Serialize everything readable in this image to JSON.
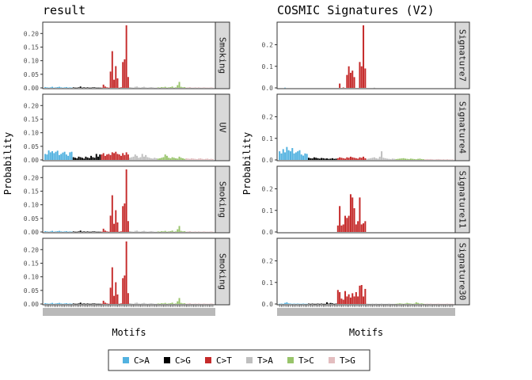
{
  "colors": {
    "C>A": "#52B2E0",
    "C>G": "#000000",
    "C>T": "#C52A2A",
    "T>A": "#BFBFBF",
    "T>C": "#98C46A",
    "T>G": "#E3BDBF"
  },
  "legend": [
    "C>A",
    "C>G",
    "C>T",
    "T>A",
    "T>C",
    "T>G"
  ],
  "chart_data": [
    {
      "type": "bar",
      "title": "result",
      "xlabel": "Motifs",
      "ylabel": "Probability",
      "ylim": [
        0,
        0.23
      ],
      "yticks": [
        0.0,
        0.05,
        0.1,
        0.15,
        0.2
      ],
      "ytick_labels": [
        "0.00",
        "0.05",
        "0.10",
        "0.15",
        "0.20"
      ],
      "panels": [
        {
          "strip": "Smoking",
          "values": [
            0.003,
            0.002,
            0.001,
            0.002,
            0.004,
            0.001,
            0.002,
            0.003,
            0.004,
            0.002,
            0.001,
            0.002,
            0.003,
            0.001,
            0.002,
            0.001,
            0.002,
            0.001,
            0.001,
            0.002,
            0.005,
            0.001,
            0.002,
            0.001,
            0.002,
            0.001,
            0.001,
            0.002,
            0.002,
            0.001,
            0.001,
            0.001,
            0.001,
            0.012,
            0.005,
            0.002,
            0.001,
            0.06,
            0.135,
            0.03,
            0.08,
            0.035,
            0.001,
            0.002,
            0.095,
            0.105,
            0.23,
            0.04,
            0.003,
            0.002,
            0.001,
            0.004,
            0.005,
            0.002,
            0.001,
            0.003,
            0.004,
            0.002,
            0.001,
            0.002,
            0.003,
            0.002,
            0.001,
            0.001,
            0.002,
            0.001,
            0.003,
            0.002,
            0.004,
            0.001,
            0.002,
            0.003,
            0.005,
            0.001,
            0.002,
            0.01,
            0.022,
            0.004,
            0.002,
            0.003,
            0.001,
            0.002,
            0.003,
            0.001,
            0.001,
            0.002,
            0.001,
            0.002,
            0.001,
            0.001,
            0.002,
            0.001,
            0.001,
            0.001,
            0.002,
            0.001
          ]
        },
        {
          "strip": "UV",
          "values": [
            0.022,
            0.02,
            0.035,
            0.028,
            0.032,
            0.025,
            0.03,
            0.034,
            0.018,
            0.022,
            0.027,
            0.03,
            0.02,
            0.015,
            0.028,
            0.03,
            0.01,
            0.008,
            0.006,
            0.012,
            0.01,
            0.008,
            0.005,
            0.012,
            0.009,
            0.007,
            0.015,
            0.01,
            0.008,
            0.022,
            0.012,
            0.02,
            0.02,
            0.025,
            0.015,
            0.02,
            0.022,
            0.018,
            0.028,
            0.025,
            0.03,
            0.022,
            0.02,
            0.015,
            0.025,
            0.018,
            0.028,
            0.02,
            0.008,
            0.01,
            0.012,
            0.02,
            0.015,
            0.008,
            0.01,
            0.022,
            0.012,
            0.018,
            0.01,
            0.008,
            0.006,
            0.005,
            0.008,
            0.006,
            0.005,
            0.006,
            0.008,
            0.01,
            0.02,
            0.015,
            0.008,
            0.006,
            0.01,
            0.008,
            0.006,
            0.005,
            0.012,
            0.008,
            0.006,
            0.004,
            0.006,
            0.005,
            0.004,
            0.006,
            0.005,
            0.004,
            0.003,
            0.005,
            0.006,
            0.004,
            0.003,
            0.004,
            0.005,
            0.003,
            0.004,
            0.003
          ]
        },
        {
          "strip": "Smoking",
          "values": [
            0.003,
            0.002,
            0.001,
            0.002,
            0.004,
            0.001,
            0.002,
            0.003,
            0.004,
            0.002,
            0.001,
            0.002,
            0.003,
            0.001,
            0.002,
            0.001,
            0.002,
            0.001,
            0.001,
            0.002,
            0.005,
            0.001,
            0.002,
            0.001,
            0.002,
            0.001,
            0.001,
            0.002,
            0.002,
            0.001,
            0.001,
            0.001,
            0.001,
            0.012,
            0.005,
            0.002,
            0.001,
            0.06,
            0.135,
            0.03,
            0.08,
            0.035,
            0.001,
            0.002,
            0.095,
            0.105,
            0.23,
            0.04,
            0.003,
            0.002,
            0.001,
            0.004,
            0.005,
            0.002,
            0.001,
            0.003,
            0.004,
            0.002,
            0.001,
            0.002,
            0.003,
            0.002,
            0.001,
            0.001,
            0.002,
            0.001,
            0.003,
            0.002,
            0.004,
            0.001,
            0.002,
            0.003,
            0.005,
            0.001,
            0.002,
            0.01,
            0.022,
            0.004,
            0.002,
            0.003,
            0.001,
            0.002,
            0.003,
            0.001,
            0.001,
            0.002,
            0.001,
            0.002,
            0.001,
            0.001,
            0.002,
            0.001,
            0.001,
            0.001,
            0.002,
            0.001
          ]
        },
        {
          "strip": "Smoking",
          "values": [
            0.003,
            0.002,
            0.001,
            0.002,
            0.004,
            0.001,
            0.002,
            0.003,
            0.004,
            0.002,
            0.001,
            0.002,
            0.003,
            0.001,
            0.002,
            0.001,
            0.002,
            0.001,
            0.001,
            0.002,
            0.005,
            0.001,
            0.002,
            0.001,
            0.002,
            0.001,
            0.001,
            0.002,
            0.002,
            0.001,
            0.001,
            0.001,
            0.001,
            0.012,
            0.005,
            0.002,
            0.001,
            0.06,
            0.135,
            0.03,
            0.08,
            0.035,
            0.001,
            0.002,
            0.095,
            0.105,
            0.23,
            0.04,
            0.003,
            0.002,
            0.001,
            0.004,
            0.005,
            0.002,
            0.001,
            0.003,
            0.004,
            0.002,
            0.001,
            0.002,
            0.003,
            0.002,
            0.001,
            0.001,
            0.002,
            0.001,
            0.003,
            0.002,
            0.004,
            0.001,
            0.002,
            0.003,
            0.005,
            0.001,
            0.002,
            0.01,
            0.022,
            0.004,
            0.002,
            0.003,
            0.001,
            0.002,
            0.003,
            0.001,
            0.001,
            0.002,
            0.001,
            0.002,
            0.001,
            0.001,
            0.002,
            0.001,
            0.001,
            0.001,
            0.002,
            0.001
          ]
        }
      ]
    },
    {
      "type": "bar",
      "title": "COSMIC Signatures (V2)",
      "xlabel": "Motifs",
      "ylabel": "Probability",
      "ylim": [
        0,
        0.29
      ],
      "yticks": [
        0.0,
        0.1,
        0.2
      ],
      "ytick_labels": [
        "0.0",
        "0.1",
        "0.2"
      ],
      "panels": [
        {
          "strip": "Signature7",
          "values": [
            0.0,
            0.0,
            0.0,
            0.001,
            0.0,
            0.0,
            0.0,
            0.0,
            0.0,
            0.0,
            0.0,
            0.0,
            0.0,
            0.0,
            0.0,
            0.0,
            0.0,
            0.0,
            0.0,
            0.0,
            0.0,
            0.0,
            0.0,
            0.0,
            0.0,
            0.0,
            0.0,
            0.0,
            0.0,
            0.0,
            0.0,
            0.0,
            0.0,
            0.02,
            0.0,
            0.002,
            0.0,
            0.06,
            0.1,
            0.07,
            0.08,
            0.05,
            0.0,
            0.0,
            0.12,
            0.1,
            0.29,
            0.09,
            0.0,
            0.0,
            0.0,
            0.0,
            0.001,
            0.0,
            0.0,
            0.0,
            0.0,
            0.0,
            0.0,
            0.0,
            0.0,
            0.0,
            0.0,
            0.0,
            0.0,
            0.0,
            0.0,
            0.0,
            0.0,
            0.0,
            0.0,
            0.0,
            0.0,
            0.0,
            0.0,
            0.0,
            0.0,
            0.0,
            0.0,
            0.0,
            0.0,
            0.0,
            0.0,
            0.0,
            0.0,
            0.0,
            0.0,
            0.0,
            0.0,
            0.0,
            0.0,
            0.0,
            0.0,
            0.0,
            0.0,
            0.0
          ]
        },
        {
          "strip": "Signature4",
          "values": [
            0.04,
            0.03,
            0.05,
            0.035,
            0.06,
            0.045,
            0.04,
            0.055,
            0.03,
            0.035,
            0.04,
            0.045,
            0.025,
            0.02,
            0.03,
            0.028,
            0.01,
            0.008,
            0.007,
            0.012,
            0.01,
            0.008,
            0.006,
            0.009,
            0.008,
            0.006,
            0.007,
            0.005,
            0.006,
            0.008,
            0.005,
            0.006,
            0.008,
            0.012,
            0.01,
            0.008,
            0.006,
            0.012,
            0.01,
            0.015,
            0.012,
            0.01,
            0.008,
            0.006,
            0.012,
            0.01,
            0.015,
            0.008,
            0.005,
            0.006,
            0.008,
            0.01,
            0.012,
            0.008,
            0.006,
            0.015,
            0.04,
            0.01,
            0.008,
            0.006,
            0.005,
            0.004,
            0.006,
            0.005,
            0.004,
            0.005,
            0.006,
            0.007,
            0.008,
            0.006,
            0.005,
            0.004,
            0.006,
            0.005,
            0.004,
            0.003,
            0.005,
            0.006,
            0.004,
            0.003,
            0.003,
            0.004,
            0.003,
            0.004,
            0.003,
            0.002,
            0.003,
            0.004,
            0.003,
            0.002,
            0.003,
            0.002,
            0.003,
            0.002,
            0.002,
            0.002
          ]
        },
        {
          "strip": "Signature11",
          "values": [
            0.0,
            0.0,
            0.0,
            0.0,
            0.0,
            0.0,
            0.0,
            0.0,
            0.0,
            0.0,
            0.0,
            0.0,
            0.0,
            0.0,
            0.0,
            0.0,
            0.0,
            0.0,
            0.0,
            0.0,
            0.0,
            0.0,
            0.0,
            0.0,
            0.0,
            0.0,
            0.0,
            0.0,
            0.0,
            0.0,
            0.0,
            0.0,
            0.03,
            0.12,
            0.03,
            0.035,
            0.075,
            0.065,
            0.075,
            0.175,
            0.16,
            0.11,
            0.035,
            0.05,
            0.16,
            0.035,
            0.04,
            0.05,
            0.0,
            0.0,
            0.0,
            0.0,
            0.0,
            0.0,
            0.0,
            0.0,
            0.0,
            0.0,
            0.0,
            0.0,
            0.0,
            0.0,
            0.0,
            0.0,
            0.0,
            0.0,
            0.0,
            0.0,
            0.0,
            0.0,
            0.0,
            0.0,
            0.0,
            0.0,
            0.0,
            0.0,
            0.0,
            0.0,
            0.0,
            0.0,
            0.0,
            0.0,
            0.0,
            0.0,
            0.0,
            0.0,
            0.0,
            0.0,
            0.0,
            0.0,
            0.0,
            0.0,
            0.0,
            0.0,
            0.0,
            0.0
          ]
        },
        {
          "strip": "Signature30",
          "values": [
            0.001,
            0.002,
            0.001,
            0.005,
            0.008,
            0.003,
            0.002,
            0.001,
            0.002,
            0.001,
            0.002,
            0.001,
            0.001,
            0.002,
            0.001,
            0.001,
            0.002,
            0.001,
            0.002,
            0.001,
            0.001,
            0.002,
            0.001,
            0.002,
            0.001,
            0.001,
            0.008,
            0.002,
            0.005,
            0.003,
            0.001,
            0.002,
            0.065,
            0.055,
            0.025,
            0.02,
            0.06,
            0.035,
            0.045,
            0.03,
            0.05,
            0.035,
            0.055,
            0.035,
            0.085,
            0.088,
            0.035,
            0.07,
            0.002,
            0.001,
            0.001,
            0.002,
            0.001,
            0.002,
            0.001,
            0.001,
            0.002,
            0.001,
            0.001,
            0.001,
            0.002,
            0.001,
            0.001,
            0.001,
            0.001,
            0.002,
            0.003,
            0.002,
            0.001,
            0.002,
            0.005,
            0.003,
            0.002,
            0.001,
            0.002,
            0.008,
            0.005,
            0.002,
            0.003,
            0.001,
            0.001,
            0.002,
            0.001,
            0.002,
            0.001,
            0.001,
            0.001,
            0.002,
            0.001,
            0.001,
            0.001,
            0.001,
            0.002,
            0.001,
            0.001,
            0.001
          ]
        }
      ]
    }
  ]
}
